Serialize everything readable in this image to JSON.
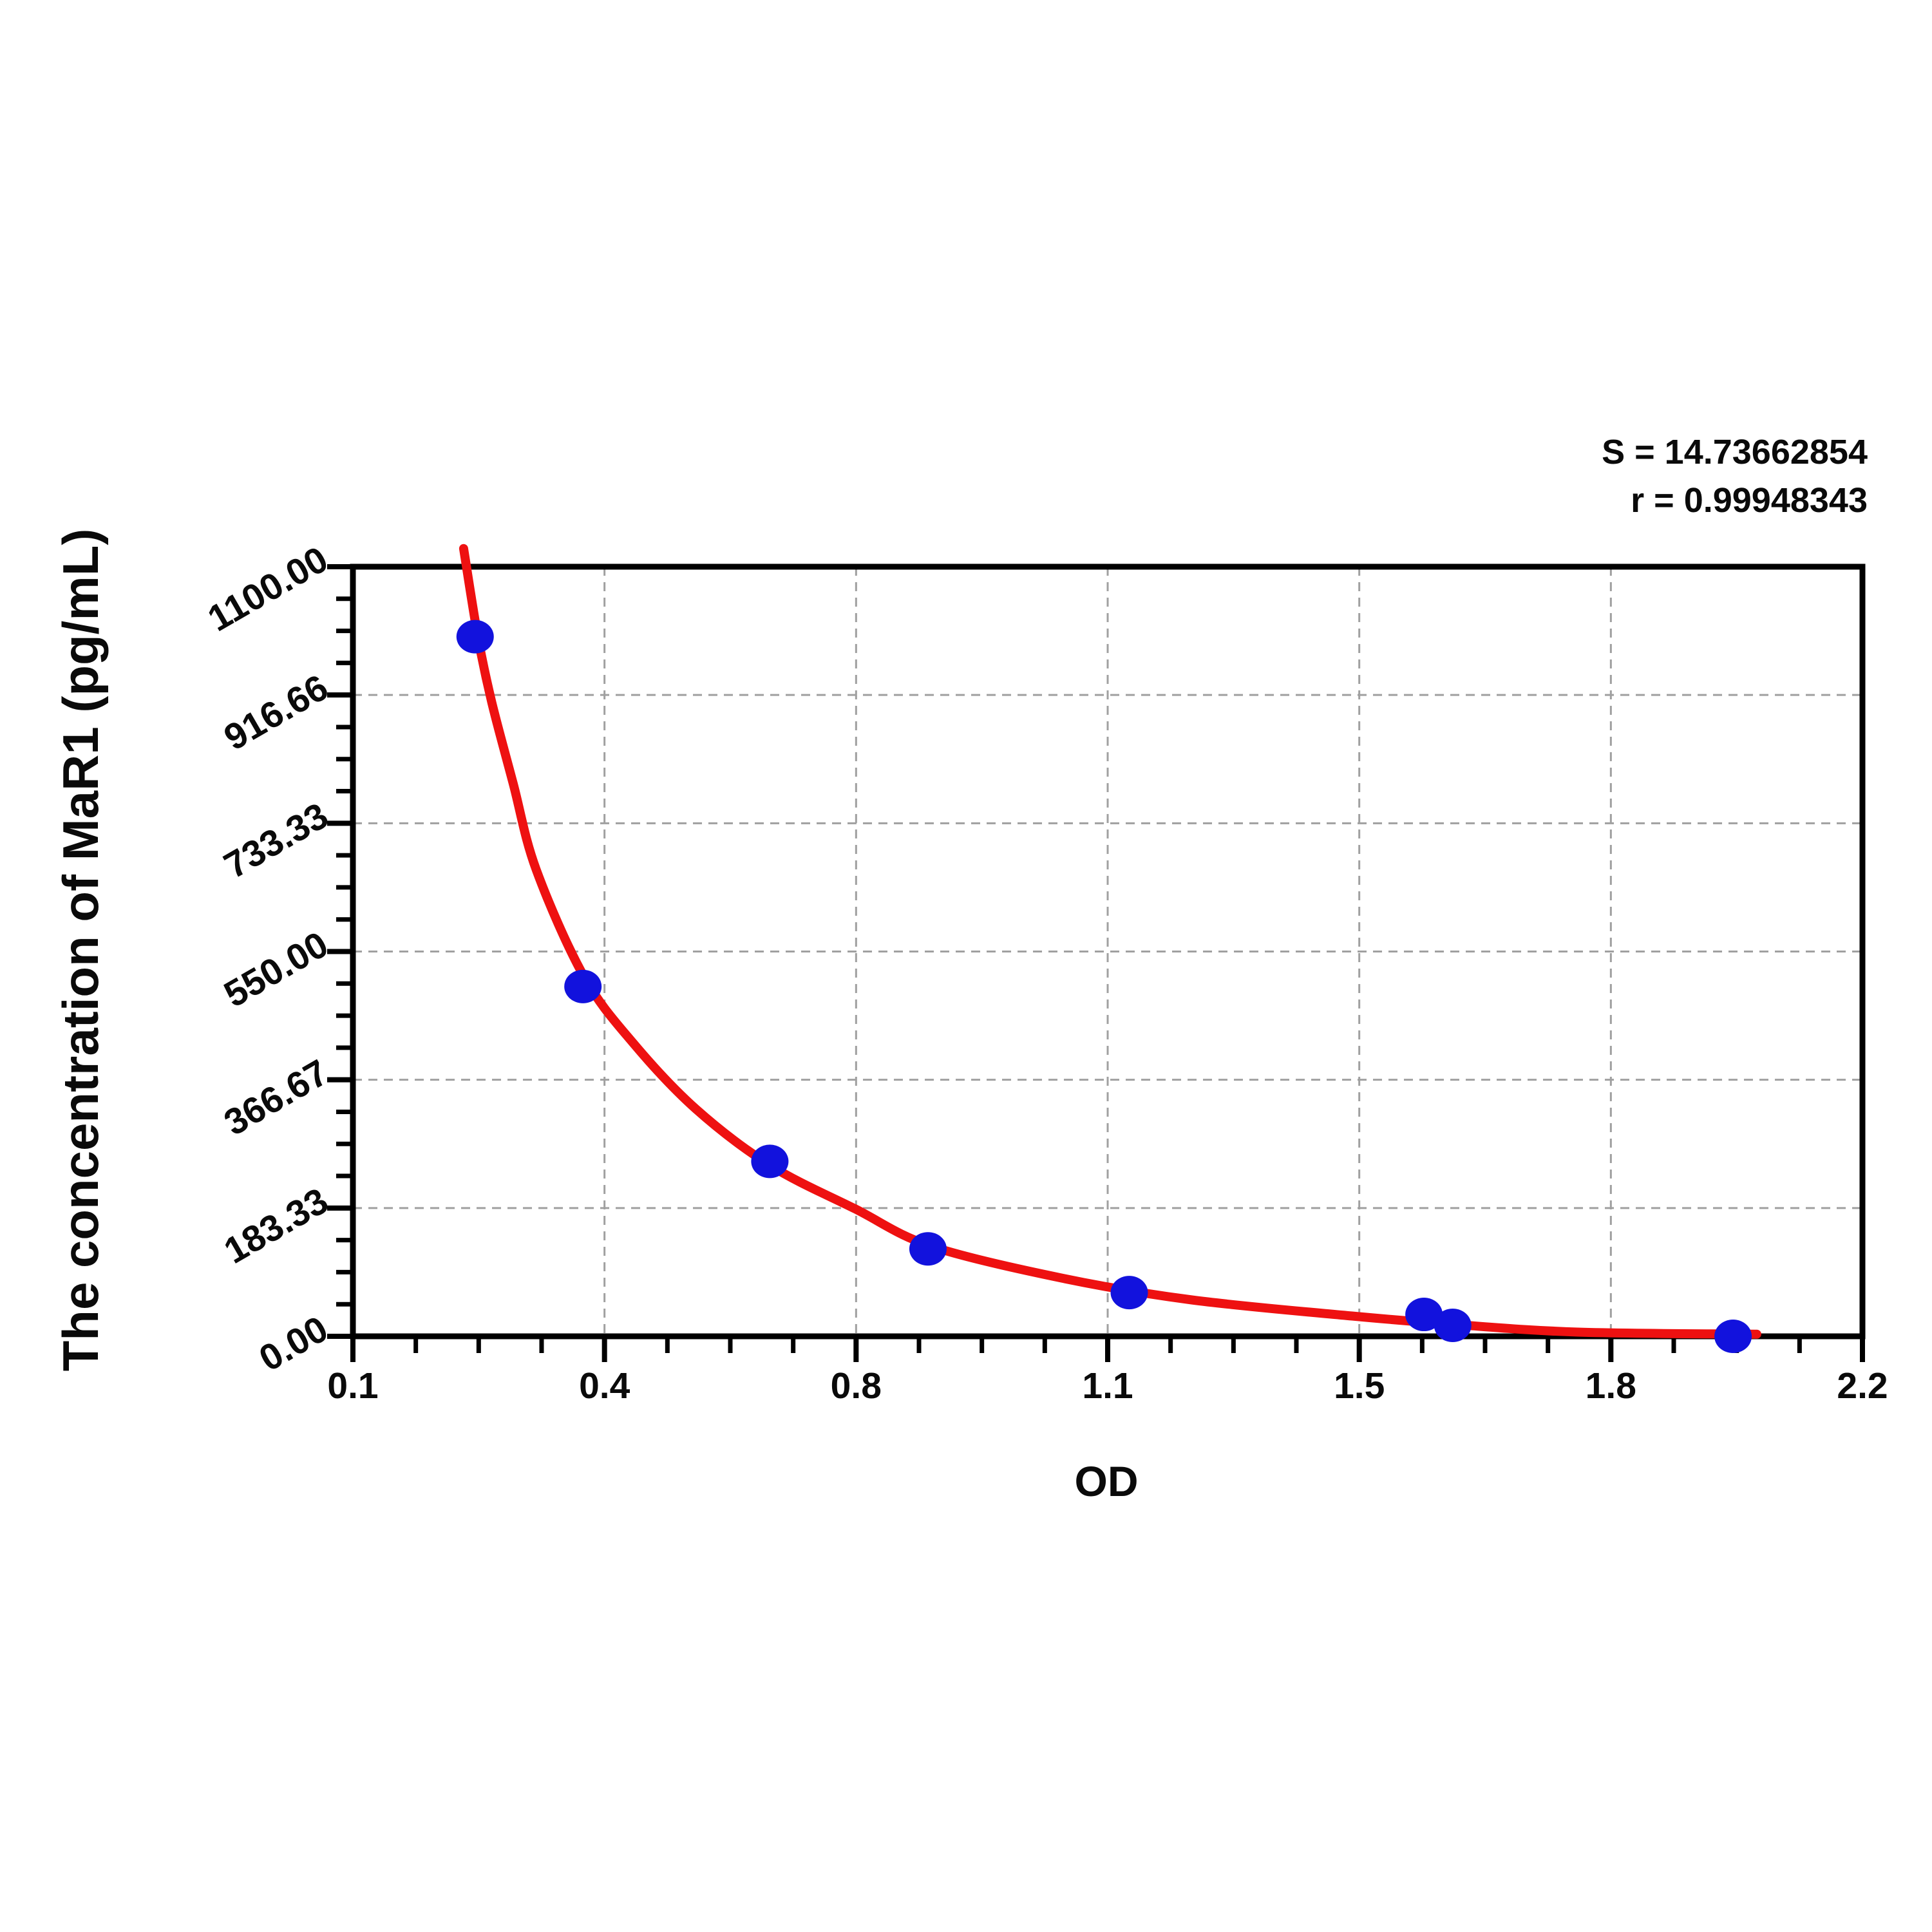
{
  "chart_data": {
    "type": "scatter",
    "title": "",
    "xlabel": "OD",
    "ylabel": "The concentration of MaR1 (pg/mL)",
    "xlim": [
      0.1,
      2.2
    ],
    "ylim": [
      0,
      1100
    ],
    "x_tick_labels": [
      "0.1",
      "0.4",
      "0.8",
      "1.1",
      "1.5",
      "1.8",
      "2.2"
    ],
    "y_tick_labels": [
      "0.00",
      "183.33",
      "366.67",
      "550.00",
      "733.33",
      "916.66",
      "1100.00"
    ],
    "minor_ticks_per_interval": 3,
    "grid": "dashed on major lines",
    "legend": "none",
    "annotations": [
      "S = 14.73662854",
      "r = 0.99948343"
    ],
    "colors": {
      "curve": "#ee1111",
      "points": "#1212dd",
      "grid": "#a0a0a0",
      "axis": "#000000"
    },
    "series": [
      {
        "name": "standard-points",
        "type": "scatter",
        "color": "#1212dd",
        "points": [
          {
            "od": 0.27,
            "conc": 1000
          },
          {
            "od": 0.42,
            "conc": 500
          },
          {
            "od": 0.68,
            "conc": 250
          },
          {
            "od": 0.9,
            "conc": 125
          },
          {
            "od": 1.18,
            "conc": 62.5
          },
          {
            "od": 1.59,
            "conc": 31.25
          },
          {
            "od": 1.63,
            "conc": 15.63
          },
          {
            "od": 2.02,
            "conc": 0
          }
        ]
      },
      {
        "name": "fitted-curve",
        "type": "line",
        "color": "#ee1111",
        "points": [
          {
            "od": 0.254,
            "conc": 1126
          },
          {
            "od": 0.274,
            "conc": 999
          },
          {
            "od": 0.293,
            "conc": 907
          },
          {
            "od": 0.323,
            "conc": 790
          },
          {
            "od": 0.355,
            "conc": 667
          },
          {
            "od": 0.421,
            "conc": 515
          },
          {
            "od": 0.49,
            "conc": 419
          },
          {
            "od": 0.577,
            "conc": 325
          },
          {
            "od": 0.681,
            "conc": 244
          },
          {
            "od": 0.799,
            "conc": 182
          },
          {
            "od": 0.904,
            "conc": 129
          },
          {
            "od": 1.087,
            "conc": 83
          },
          {
            "od": 1.267,
            "conc": 52
          },
          {
            "od": 1.49,
            "conc": 29
          },
          {
            "od": 1.631,
            "conc": 17
          },
          {
            "od": 1.804,
            "conc": 6
          },
          {
            "od": 2.053,
            "conc": 3
          }
        ]
      }
    ]
  }
}
